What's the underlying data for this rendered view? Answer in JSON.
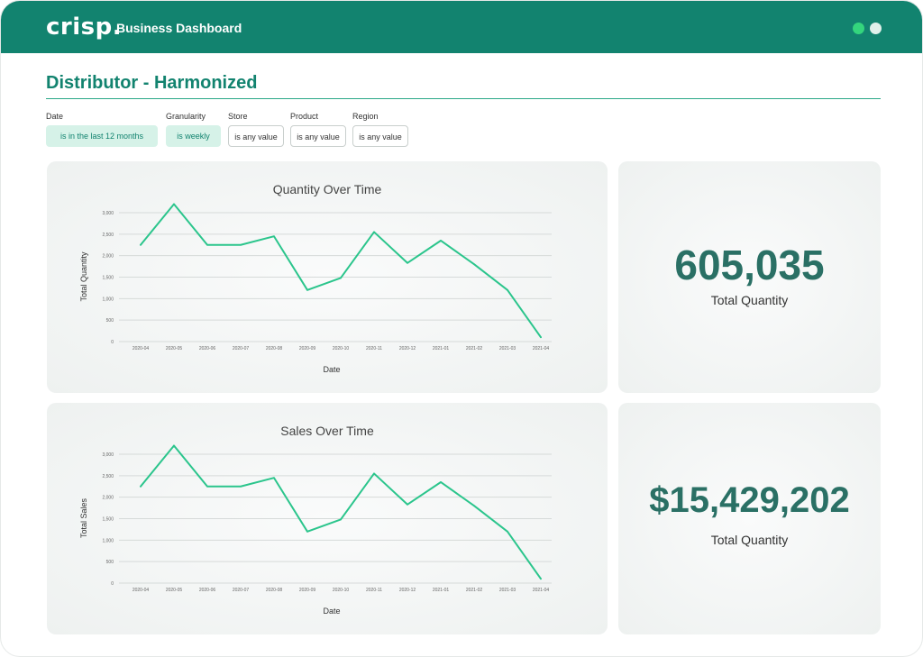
{
  "header": {
    "logo": "crisp.",
    "title": "Business Dashboard",
    "dot_colors": [
      "#34d57d",
      "#dff0ea"
    ]
  },
  "page": {
    "title": "Distributor - Harmonized"
  },
  "filters": [
    {
      "label": "Date",
      "value": "is in the last 12 months",
      "active": true
    },
    {
      "label": "Granularity",
      "value": "is weekly",
      "active": true
    },
    {
      "label": "Store",
      "value": "is any value",
      "active": false
    },
    {
      "label": "Product",
      "value": "is any value",
      "active": false
    },
    {
      "label": "Region",
      "value": "is any value",
      "active": false
    }
  ],
  "kpis": [
    {
      "value": "605,035",
      "label": "Total Quantity"
    },
    {
      "value": "$15,429,202",
      "label": "Total Quantity"
    }
  ],
  "colors": {
    "brand": "#12836f",
    "line": "#2bc58c",
    "kpi": "#2a7065"
  },
  "chart_data": [
    {
      "type": "line",
      "title": "Quantity Over Time",
      "xlabel": "Date",
      "ylabel": "Total Quantity",
      "categories": [
        "2020-04",
        "2020-05",
        "2020-06",
        "2020-07",
        "2020-08",
        "2020-09",
        "2020-10",
        "2020-11",
        "2020-12",
        "2021-01",
        "2021-02",
        "2021-03",
        "2021-04"
      ],
      "y_ticks": [
        "0",
        "500",
        "1,000",
        "1,500",
        "2,000",
        "2,500",
        "3,000"
      ],
      "ylim": [
        0,
        3000
      ],
      "grid": true,
      "series": [
        {
          "values": [
            2250,
            3200,
            2250,
            2250,
            2450,
            1200,
            1480,
            2550,
            1830,
            2350,
            1800,
            1200,
            100
          ]
        }
      ]
    },
    {
      "type": "line",
      "title": "Sales Over Time",
      "xlabel": "Date",
      "ylabel": "Total Sales",
      "categories": [
        "2020-04",
        "2020-05",
        "2020-06",
        "2020-07",
        "2020-08",
        "2020-09",
        "2020-10",
        "2020-11",
        "2020-12",
        "2021-01",
        "2021-02",
        "2021-03",
        "2021-04"
      ],
      "y_ticks": [
        "0",
        "500",
        "1,000",
        "1,500",
        "2,000",
        "2,500",
        "3,000"
      ],
      "ylim": [
        0,
        3000
      ],
      "grid": true,
      "series": [
        {
          "values": [
            2250,
            3200,
            2250,
            2250,
            2450,
            1200,
            1480,
            2550,
            1830,
            2350,
            1800,
            1200,
            100
          ]
        }
      ]
    }
  ]
}
